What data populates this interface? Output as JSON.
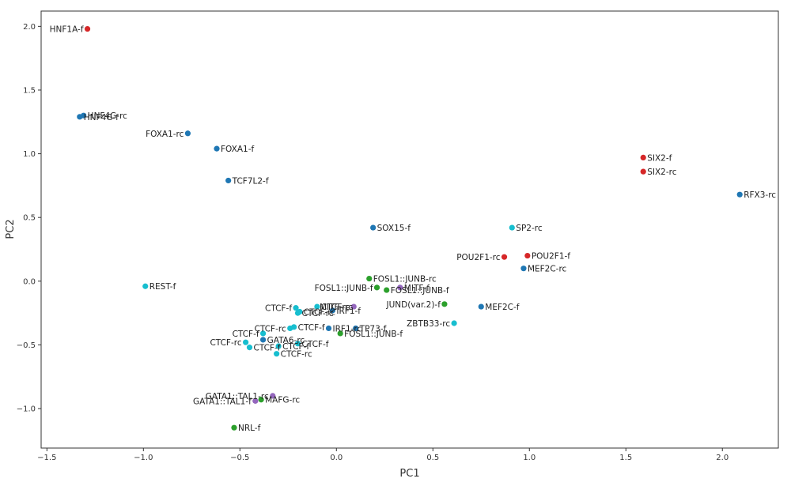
{
  "chart_data": {
    "type": "scatter",
    "xlabel": "PC1",
    "ylabel": "PC2",
    "xlim": [
      -1.53,
      2.29
    ],
    "ylim": [
      -1.31,
      2.12
    ],
    "xticks": [
      -1.5,
      -1.0,
      -0.5,
      0.0,
      0.5,
      1.0,
      1.5,
      2.0
    ],
    "xtick_labels": [
      "−1.5",
      "−1.0",
      "−0.5",
      "0.0",
      "0.5",
      "1.0",
      "1.5",
      "2.0"
    ],
    "yticks": [
      -1.0,
      -0.5,
      0.0,
      0.5,
      1.0,
      1.5,
      2.0
    ],
    "ytick_labels": [
      "−1.0",
      "−0.5",
      "0.0",
      "0.5",
      "1.0",
      "1.5",
      "2.0"
    ],
    "grid": false,
    "colors": {
      "red": "#d62728",
      "blue": "#1f77b4",
      "cyan": "#17becf",
      "green": "#2ca02c",
      "purple": "#9467bd"
    },
    "points": [
      {
        "label": "HNF1A-f",
        "x": -1.29,
        "y": 1.98,
        "color": "red",
        "anchor": "end"
      },
      {
        "label": "HNF4G-rc",
        "x": -1.31,
        "y": 1.3,
        "color": "blue",
        "anchor": "start"
      },
      {
        "label": "HNF4G-f",
        "x": -1.33,
        "y": 1.29,
        "color": "blue",
        "anchor": "start"
      },
      {
        "label": "FOXA1-rc",
        "x": -0.77,
        "y": 1.16,
        "color": "blue",
        "anchor": "end"
      },
      {
        "label": "FOXA1-f",
        "x": -0.62,
        "y": 1.04,
        "color": "blue",
        "anchor": "start"
      },
      {
        "label": "TCF7L2-f",
        "x": -0.56,
        "y": 0.79,
        "color": "blue",
        "anchor": "start"
      },
      {
        "label": "SIX2-f",
        "x": 1.59,
        "y": 0.97,
        "color": "red",
        "anchor": "start"
      },
      {
        "label": "SIX2-rc",
        "x": 1.59,
        "y": 0.86,
        "color": "red",
        "anchor": "start"
      },
      {
        "label": "RFX3-rc",
        "x": 2.09,
        "y": 0.68,
        "color": "blue",
        "anchor": "start"
      },
      {
        "label": "SOX15-f",
        "x": 0.19,
        "y": 0.42,
        "color": "blue",
        "anchor": "start"
      },
      {
        "label": "SP2-rc",
        "x": 0.91,
        "y": 0.42,
        "color": "cyan",
        "anchor": "start"
      },
      {
        "label": "POU2F1-rc",
        "x": 0.87,
        "y": 0.19,
        "color": "red",
        "anchor": "end"
      },
      {
        "label": "POU2F1-f",
        "x": 0.99,
        "y": 0.2,
        "color": "red",
        "anchor": "start"
      },
      {
        "label": "MEF2C-rc",
        "x": 0.97,
        "y": 0.1,
        "color": "blue",
        "anchor": "start"
      },
      {
        "label": "REST-f",
        "x": -0.99,
        "y": -0.04,
        "color": "cyan",
        "anchor": "start"
      },
      {
        "label": "FOSL1::JUNB-rc",
        "x": 0.17,
        "y": 0.02,
        "color": "green",
        "anchor": "start"
      },
      {
        "label": "FOSL1::JUNB-f",
        "x": 0.21,
        "y": -0.05,
        "color": "green",
        "anchor": "end"
      },
      {
        "label": "MITF-f",
        "x": 0.33,
        "y": -0.05,
        "color": "purple",
        "anchor": "start"
      },
      {
        "label": "FOSL1::JUNB-f",
        "x": 0.26,
        "y": -0.07,
        "color": "green",
        "anchor": "start"
      },
      {
        "label": "JUND(var.2)-f",
        "x": 0.56,
        "y": -0.18,
        "color": "green",
        "anchor": "end"
      },
      {
        "label": "MEF2C-f",
        "x": 0.75,
        "y": -0.2,
        "color": "blue",
        "anchor": "start"
      },
      {
        "label": "ZBTB33-rc",
        "x": 0.61,
        "y": -0.33,
        "color": "cyan",
        "anchor": "end"
      },
      {
        "label": "CTCF-f",
        "x": -0.21,
        "y": -0.21,
        "color": "cyan",
        "anchor": "end"
      },
      {
        "label": "CTCF-rc",
        "x": -0.1,
        "y": -0.2,
        "color": "cyan",
        "anchor": "start"
      },
      {
        "label": "MITF-rc",
        "x": 0.09,
        "y": -0.2,
        "color": "purple",
        "anchor": "end"
      },
      {
        "label": "IRF1-f",
        "x": -0.02,
        "y": -0.23,
        "color": "blue",
        "anchor": "start"
      },
      {
        "label": "CTCF-rc",
        "x": -0.19,
        "y": -0.24,
        "color": "cyan",
        "anchor": "start"
      },
      {
        "label": "CTCF-rc",
        "x": -0.2,
        "y": -0.25,
        "color": "cyan",
        "anchor": "start"
      },
      {
        "label": "CTCF-rc",
        "x": -0.24,
        "y": -0.37,
        "color": "cyan",
        "anchor": "end"
      },
      {
        "label": "CTCF-f",
        "x": -0.22,
        "y": -0.36,
        "color": "cyan",
        "anchor": "start"
      },
      {
        "label": "IRF1-rc",
        "x": -0.04,
        "y": -0.37,
        "color": "blue",
        "anchor": "start"
      },
      {
        "label": "TP73-f",
        "x": 0.1,
        "y": -0.37,
        "color": "blue",
        "anchor": "start"
      },
      {
        "label": "FOSL1::JUNB-f",
        "x": 0.02,
        "y": -0.41,
        "color": "green",
        "anchor": "start"
      },
      {
        "label": "CTCF-f",
        "x": -0.38,
        "y": -0.41,
        "color": "cyan",
        "anchor": "end"
      },
      {
        "label": "GATA6-rc",
        "x": -0.38,
        "y": -0.46,
        "color": "blue",
        "anchor": "start"
      },
      {
        "label": "CTCF-rc",
        "x": -0.47,
        "y": -0.48,
        "color": "cyan",
        "anchor": "end"
      },
      {
        "label": "CTCF-f",
        "x": -0.2,
        "y": -0.49,
        "color": "cyan",
        "anchor": "start"
      },
      {
        "label": "CTCF-f",
        "x": -0.3,
        "y": -0.51,
        "color": "cyan",
        "anchor": "start"
      },
      {
        "label": "CTCF-f",
        "x": -0.45,
        "y": -0.52,
        "color": "cyan",
        "anchor": "start"
      },
      {
        "label": "CTCF-rc",
        "x": -0.31,
        "y": -0.57,
        "color": "cyan",
        "anchor": "start"
      },
      {
        "label": "GATA1::TAL1-rc",
        "x": -0.33,
        "y": -0.9,
        "color": "purple",
        "anchor": "end"
      },
      {
        "label": "GATA1::TAL1-f",
        "x": -0.42,
        "y": -0.94,
        "color": "purple",
        "anchor": "end"
      },
      {
        "label": "MAFG-rc",
        "x": -0.39,
        "y": -0.93,
        "color": "green",
        "anchor": "start"
      },
      {
        "label": "NRL-f",
        "x": -0.53,
        "y": -1.15,
        "color": "green",
        "anchor": "start"
      }
    ]
  }
}
